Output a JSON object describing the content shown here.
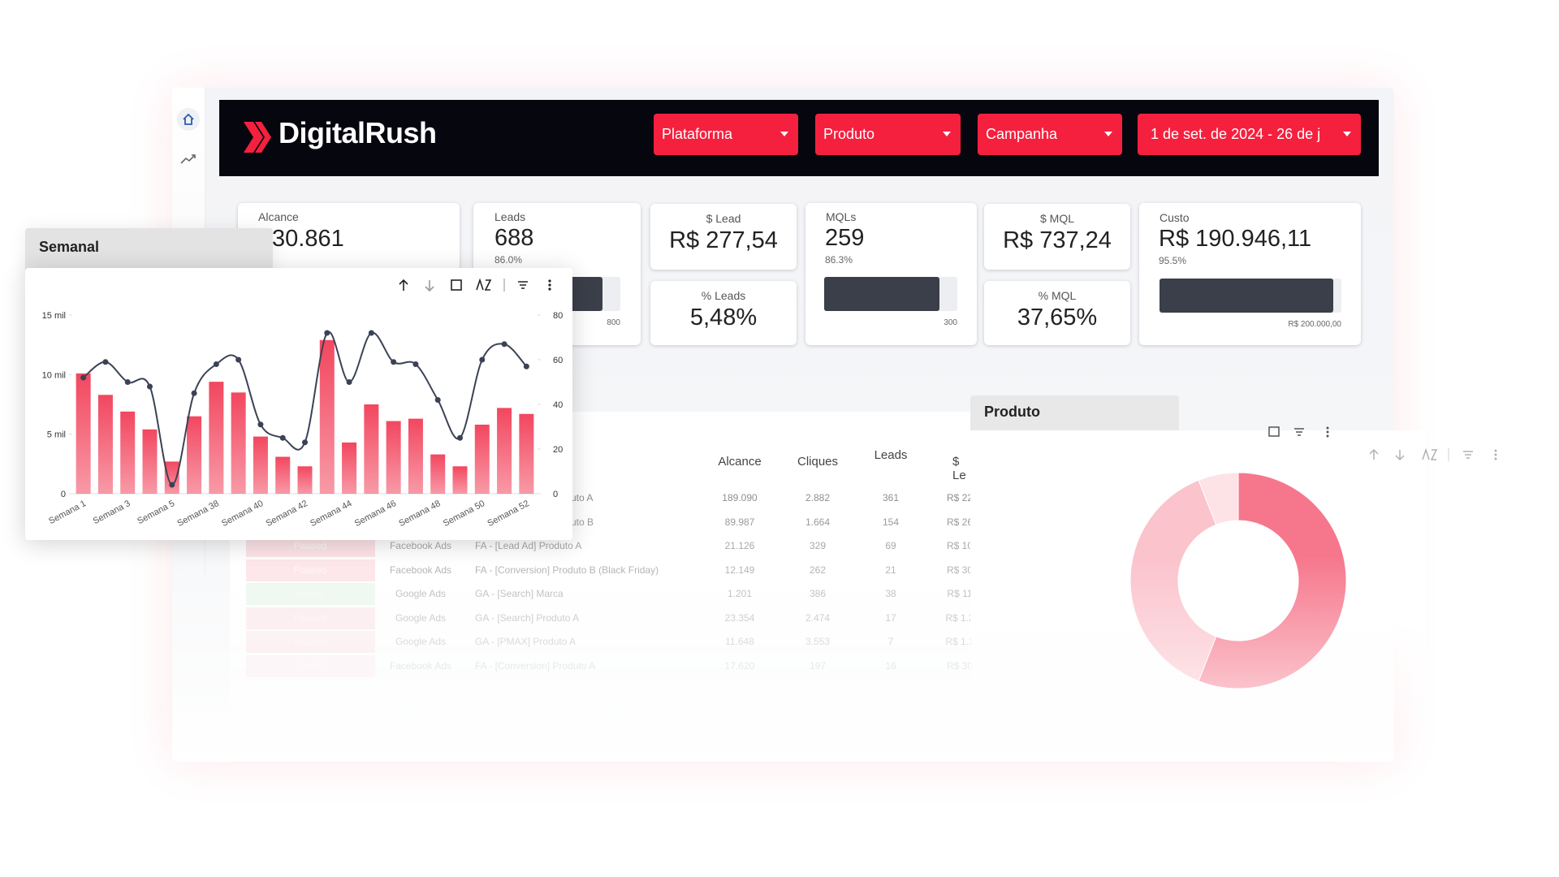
{
  "header": {
    "logo": "DigitalRush",
    "filters": [
      "Plataforma",
      "Produto",
      "Campanha",
      "1 de set. de 2024 - 26 de j"
    ]
  },
  "kpis": {
    "alcance": {
      "label": "Alcance",
      "value": "30.861"
    },
    "leads": {
      "label": "Leads",
      "value": "688",
      "pct": {
        "value": 86.0,
        "label": "86.0%"
      },
      "target": "800"
    },
    "lead_cost": {
      "label": "$ Lead",
      "value": "R$ 277,54"
    },
    "lead_rate": {
      "label": "% Leads",
      "value": "5,48%"
    },
    "mqls": {
      "label": "MQLs",
      "value": "259",
      "pct": {
        "value": 86.3,
        "label": "86.3%"
      },
      "target": "300"
    },
    "mql_cost": {
      "label": "$ MQL",
      "value": "R$ 737,24"
    },
    "mql_rate": {
      "label": "% MQL",
      "value": "37,65%"
    },
    "custo": {
      "label": "Custo",
      "value": "R$ 190.946,11",
      "pct": {
        "value": 95.5,
        "label": "95.5%"
      },
      "target": "R$ 200.000,00"
    }
  },
  "table": {
    "headers": [
      "Alcance",
      "Cliques",
      "Leads",
      "$ Le"
    ],
    "rows": [
      {
        "campaign": "uto A",
        "alcance": "189.090",
        "cliques": "2.882",
        "leads": "361",
        "cost": "R$ 22"
      },
      {
        "campaign": "uto B",
        "alcance": "89.987",
        "cliques": "1.664",
        "leads": "154",
        "cost": "R$ 26"
      },
      {
        "status": "Paused",
        "platform": "Facebook Ads",
        "campaign": "FA - [Lead Ad] Produto A",
        "alcance": "21.126",
        "cliques": "329",
        "leads": "69",
        "cost": "R$ 10"
      },
      {
        "status": "Paused",
        "platform": "Facebook Ads",
        "campaign": "FA - [Conversion] Produto B (Black Friday)",
        "alcance": "12.149",
        "cliques": "262",
        "leads": "21",
        "cost": "R$ 30"
      },
      {
        "status": "Active",
        "platform": "Google Ads",
        "campaign": "GA - [Search] Marca",
        "alcance": "1.201",
        "cliques": "386",
        "leads": "38",
        "cost": "R$ 11"
      },
      {
        "status": "Paused",
        "platform": "Google Ads",
        "campaign": "GA - [Search] Produto A",
        "alcance": "23.354",
        "cliques": "2.474",
        "leads": "17",
        "cost": "R$ 1.2"
      },
      {
        "status": "Paused",
        "platform": "Google Ads",
        "campaign": "GA - [PMAX] Produto A",
        "alcance": "11.648",
        "cliques": "3.553",
        "leads": "7",
        "cost": "R$ 1.1"
      },
      {
        "status": "Paused",
        "platform": "Facebook Ads",
        "campaign": "FA - [Conversion] Produto A",
        "alcance": "17.620",
        "cliques": "197",
        "leads": "16",
        "cost": "R$ 30"
      }
    ]
  },
  "chart_data": [
    {
      "type": "combo",
      "title": "Semanal",
      "categories": [
        "Semana 1",
        null,
        "Semana 3",
        null,
        "Semana 5",
        null,
        "Semana 38",
        null,
        "Semana 40",
        null,
        "Semana 42",
        null,
        "Semana 44",
        null,
        "Semana 46",
        null,
        "Semana 48",
        null,
        "Semana 50",
        null,
        "Semana 52"
      ],
      "series": [
        {
          "type": "bar",
          "color": "#f2475f",
          "values": [
            10100,
            8300,
            6900,
            5400,
            2700,
            6500,
            9400,
            8500,
            4800,
            3100,
            2300,
            12900,
            4300,
            7500,
            6100,
            6300,
            3300,
            2300,
            5800,
            7200,
            6700
          ]
        },
        {
          "type": "line",
          "axis": "y2",
          "color": "#3b4256",
          "values": [
            52,
            59,
            50,
            48,
            4,
            45,
            58,
            60,
            31,
            25,
            23,
            72,
            50,
            72,
            59,
            58,
            42,
            25,
            60,
            67,
            57
          ]
        }
      ],
      "ylim": [
        0,
        15000
      ],
      "yticks": [
        0,
        {
          "value": 5000,
          "label": "5 mil"
        },
        {
          "value": 10000,
          "label": "10 mil"
        },
        {
          "value": 15000,
          "label": "15 mil"
        }
      ],
      "y2lim": [
        0,
        80
      ],
      "y2ticks": [
        0,
        20,
        40,
        60,
        80
      ]
    },
    {
      "type": "donut",
      "title": "Produto",
      "values": [
        56,
        38,
        6
      ],
      "colors": [
        "#f6778c",
        "#fbc3cc",
        "#fde2e6"
      ]
    }
  ]
}
